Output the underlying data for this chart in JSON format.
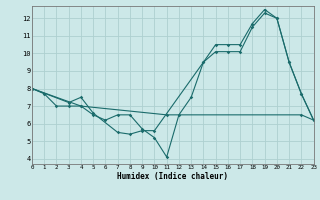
{
  "line1_x": [
    0,
    1,
    2,
    3,
    4,
    5,
    6,
    7,
    8,
    9,
    10,
    11,
    12,
    13,
    14,
    15,
    16,
    17,
    18,
    19,
    20,
    21,
    22,
    23
  ],
  "line1_y": [
    8.0,
    7.7,
    7.0,
    7.0,
    7.0,
    6.5,
    6.2,
    6.5,
    6.5,
    5.7,
    5.2,
    4.1,
    6.5,
    7.5,
    9.5,
    10.1,
    10.1,
    10.1,
    11.5,
    12.3,
    12.0,
    9.5,
    7.7,
    6.2
  ],
  "line2_x": [
    0,
    3,
    4,
    5,
    7,
    8,
    9,
    10,
    14,
    15,
    16,
    17,
    18,
    19,
    20,
    21,
    22,
    23
  ],
  "line2_y": [
    8.0,
    7.2,
    7.5,
    6.6,
    5.5,
    5.4,
    5.6,
    5.6,
    9.5,
    10.5,
    10.5,
    10.5,
    11.7,
    12.5,
    12.0,
    9.5,
    7.7,
    6.2
  ],
  "line3_x": [
    0,
    4,
    11,
    22,
    23
  ],
  "line3_y": [
    8.0,
    7.0,
    6.5,
    6.5,
    6.2
  ],
  "color": "#1a6b6b",
  "bg_color": "#cce8e8",
  "grid_color": "#aed0d0",
  "xlabel": "Humidex (Indice chaleur)",
  "xlim": [
    0,
    23
  ],
  "ylim": [
    3.7,
    12.7
  ],
  "xticks": [
    0,
    1,
    2,
    3,
    4,
    5,
    6,
    7,
    8,
    9,
    10,
    11,
    12,
    13,
    14,
    15,
    16,
    17,
    18,
    19,
    20,
    21,
    22,
    23
  ],
  "yticks": [
    4,
    5,
    6,
    7,
    8,
    9,
    10,
    11,
    12
  ]
}
